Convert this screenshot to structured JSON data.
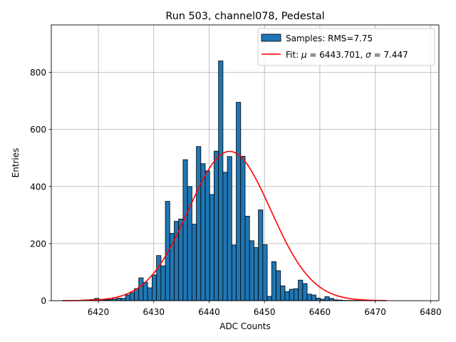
{
  "chart_data": {
    "type": "histogram",
    "title": "Run 503, channel078, Pedestal",
    "xlabel": "ADC Counts",
    "ylabel": "Entries",
    "xlim": [
      6411.5,
      6481.5
    ],
    "ylim": [
      0,
      966
    ],
    "xticks": [
      6420,
      6430,
      6440,
      6450,
      6460,
      6470,
      6480
    ],
    "yticks": [
      0,
      200,
      400,
      600,
      800
    ],
    "grid": true,
    "legend": {
      "position": "top-right",
      "entries": [
        {
          "kind": "patch",
          "label": "Samples: RMS=7.75"
        },
        {
          "kind": "line",
          "label_prefix": "Fit: ",
          "mu_symbol": "μ",
          "mu_text": " = 6443.701, ",
          "sigma_symbol": "σ",
          "sigma_text": " = 7.447"
        }
      ]
    },
    "histogram": {
      "name": "Samples",
      "bin_width": 0.8,
      "color": "#1f77b4",
      "edgecolor": "#000000",
      "bin_centers": [
        6417.3,
        6418.1,
        6418.9,
        6419.7,
        6420.5,
        6421.3,
        6422.1,
        6422.9,
        6423.7,
        6424.5,
        6425.3,
        6426.1,
        6426.9,
        6427.7,
        6428.5,
        6429.3,
        6430.1,
        6430.9,
        6431.7,
        6432.5,
        6433.3,
        6434.1,
        6434.9,
        6435.7,
        6436.5,
        6437.3,
        6438.1,
        6438.9,
        6439.7,
        6440.5,
        6441.3,
        6442.1,
        6442.9,
        6443.7,
        6444.5,
        6445.3,
        6446.1,
        6446.9,
        6447.7,
        6448.5,
        6449.3,
        6450.1,
        6450.9,
        6451.7,
        6452.5,
        6453.3,
        6454.1,
        6454.9,
        6455.7,
        6456.5,
        6457.3,
        6458.1,
        6458.9,
        6459.7,
        6460.5,
        6461.3,
        6462.1,
        6462.9,
        6463.7,
        6464.5,
        6465.3,
        6466.1,
        6466.9,
        6467.7,
        6468.5,
        6469.3,
        6470.1
      ],
      "counts": [
        2,
        3,
        4,
        8,
        5,
        3,
        4,
        6,
        9,
        8,
        20,
        28,
        42,
        80,
        64,
        45,
        90,
        158,
        122,
        348,
        236,
        278,
        286,
        494,
        400,
        268,
        540,
        480,
        455,
        372,
        524,
        840,
        450,
        505,
        195,
        695,
        506,
        296,
        210,
        186,
        318,
        196,
        15,
        137,
        105,
        52,
        32,
        40,
        42,
        72,
        60,
        23,
        20,
        9,
        5,
        14,
        8,
        3,
        2,
        1,
        1,
        1,
        1,
        0,
        0,
        1,
        1
      ]
    },
    "fit": {
      "name": "Fit",
      "color": "#ff0000",
      "mu": 6443.701,
      "sigma": 7.447,
      "amplitude": 523,
      "x_range": [
        6413.5,
        6472
      ]
    }
  }
}
